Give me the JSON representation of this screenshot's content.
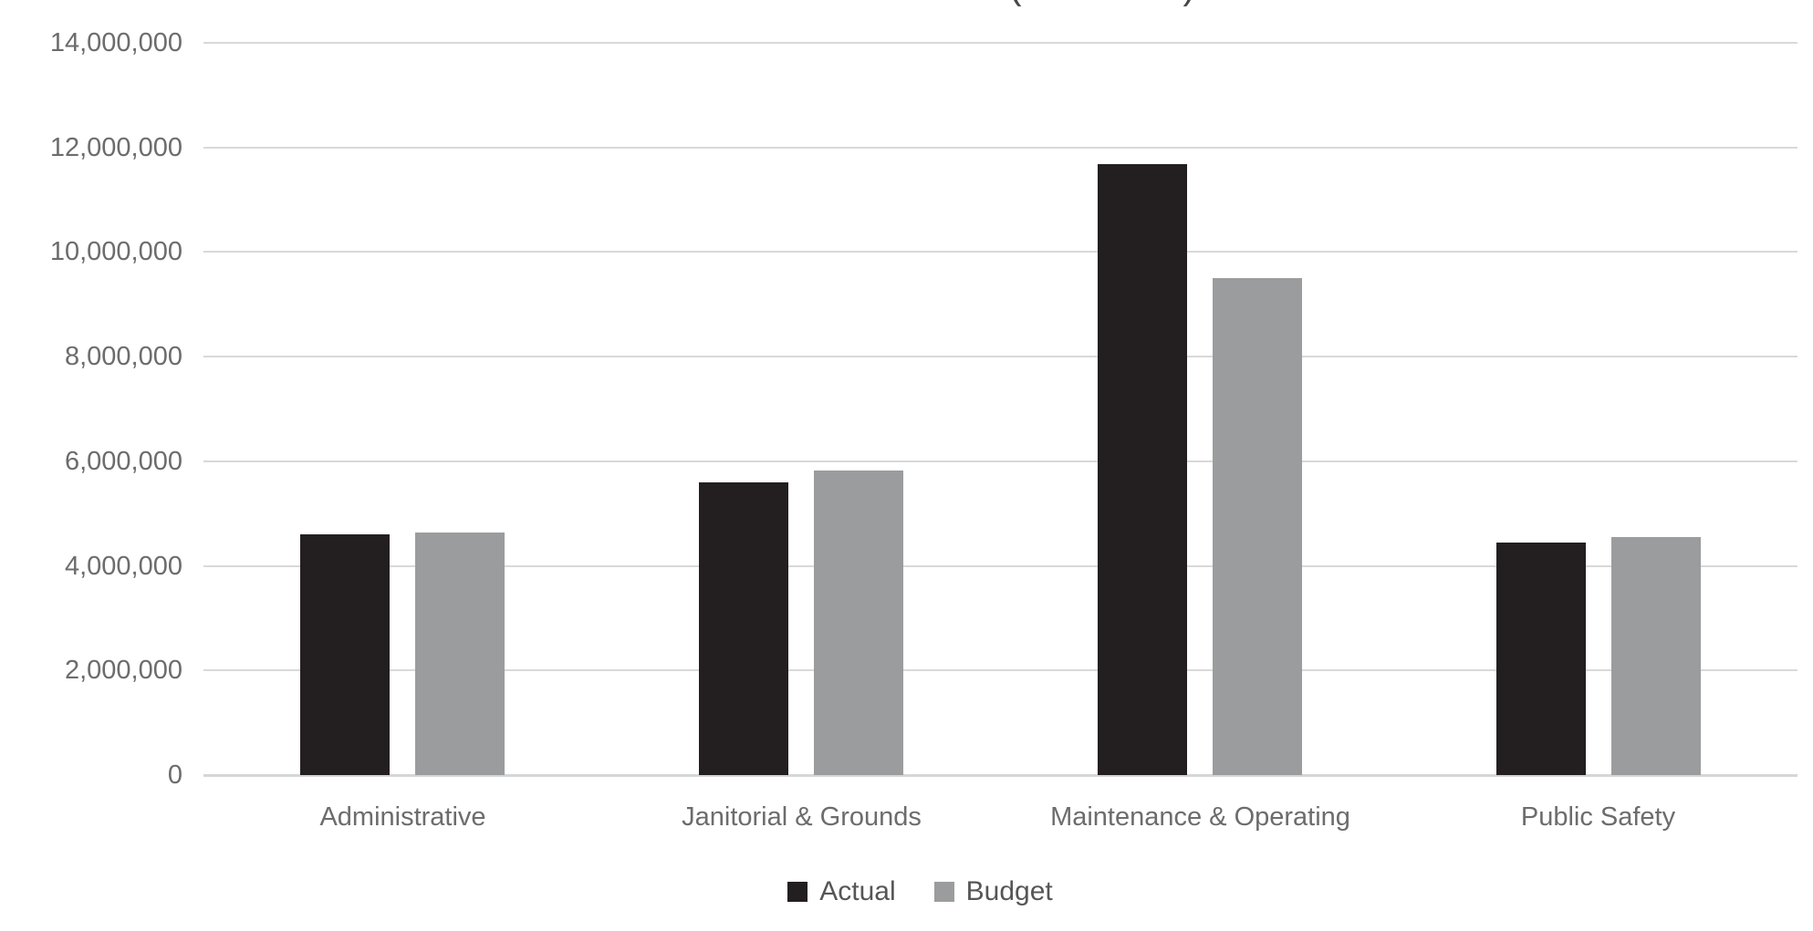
{
  "chart_data": {
    "type": "bar",
    "title": "",
    "clipped_title_glyphs": [
      "(",
      ")"
    ],
    "categories": [
      "Administrative",
      "Janitorial & Grounds",
      "Maintenance & Operating",
      "Public Safety"
    ],
    "series": [
      {
        "name": "Actual",
        "color": "#231f20",
        "values": [
          4600000,
          5600000,
          11680000,
          4450000
        ]
      },
      {
        "name": "Budget",
        "color": "#9a9c9e",
        "values": [
          4630000,
          5820000,
          9500000,
          4550000
        ]
      }
    ],
    "ylim": [
      0,
      14000000
    ],
    "y_tick_step": 2000000,
    "y_tick_labels": [
      "0",
      "2,000,000",
      "4,000,000",
      "6,000,000",
      "8,000,000",
      "10,000,000",
      "12,000,000",
      "14,000,000"
    ],
    "grid": true,
    "legend_position": "bottom",
    "xlabel": "",
    "ylabel": ""
  },
  "colors": {
    "background": "#ffffff",
    "gridline": "#d9d9d9",
    "axis_line": "#d6d6d6",
    "axis_text": "#6c6c6c",
    "legend_text": "#565656"
  }
}
